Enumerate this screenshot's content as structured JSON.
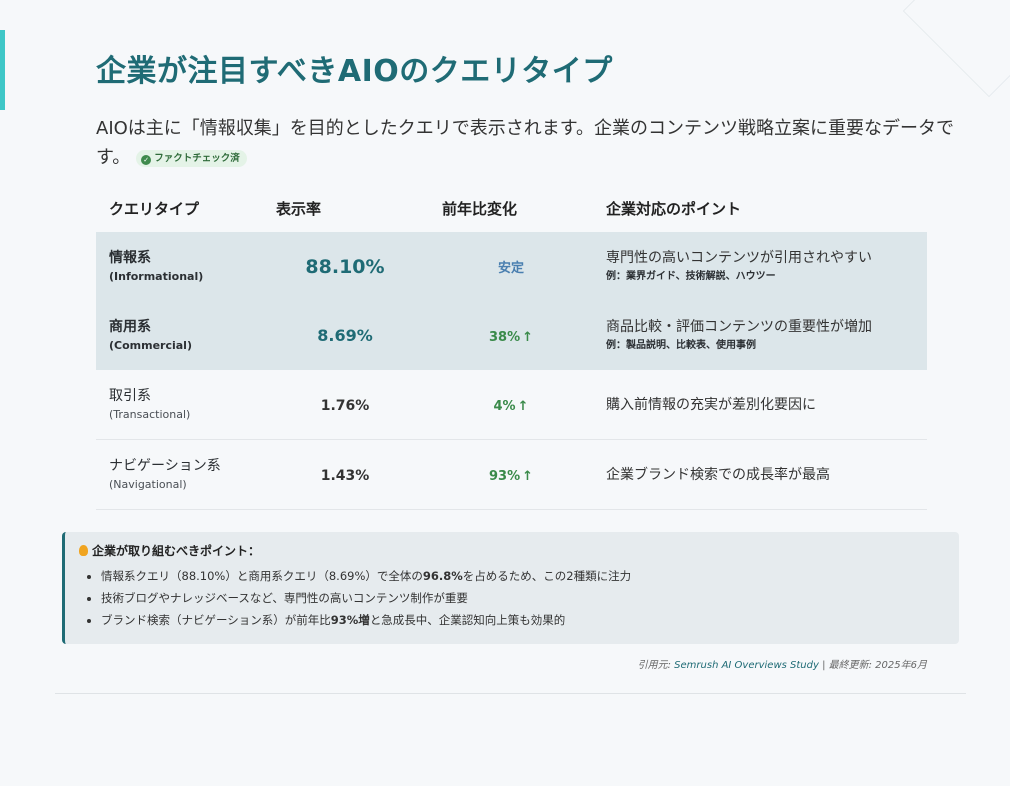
{
  "title": "企業が注目すべきAIOのクエリタイプ",
  "intro": "AIOは主に「情報収集」を目的としたクエリで表示されます。企業のコンテンツ戦略立案に重要なデータです。",
  "badge": "ファクトチェック済",
  "table": {
    "headers": [
      "クエリタイプ",
      "表示率",
      "前年比変化",
      "企業対応のポイント"
    ],
    "rows": [
      {
        "name": "情報系",
        "sub": "(Informational)",
        "rate": "88.10%",
        "change": "安定",
        "point": "専門性の高いコンテンツが引用されやすい",
        "example": "例：業界ガイド、技術解説、ハウツー"
      },
      {
        "name": "商用系",
        "sub": "(Commercial)",
        "rate": "8.69%",
        "change": "38%",
        "point": "商品比較・評価コンテンツの重要性が増加",
        "example": "例：製品説明、比較表、使用事例"
      },
      {
        "name": "取引系",
        "sub": "(Transactional)",
        "rate": "1.76%",
        "change": "4%",
        "point": "購入前情報の充実が差別化要因に",
        "example": ""
      },
      {
        "name": "ナビゲーション系",
        "sub": "(Navigational)",
        "rate": "1.43%",
        "change": "93%",
        "point": "企業ブランド検索での成長率が最高",
        "example": ""
      }
    ]
  },
  "callout": {
    "title": "企業が取り組むべきポイント：",
    "items": [
      {
        "pre": "情報系クエリ（88.10%）と商用系クエリ（8.69%）で全体の",
        "bold": "96.8%",
        "post": "を占めるため、この2種類に注力"
      },
      {
        "pre": "技術ブログやナレッジベースなど、専門性の高いコンテンツ制作が重要",
        "bold": "",
        "post": ""
      },
      {
        "pre": "ブランド検索（ナビゲーション系）が前年比",
        "bold": "93%増",
        "post": "と急成長中、企業認知向上策も効果的"
      }
    ]
  },
  "citation": {
    "prefix": "引用元: ",
    "source": "Semrush AI Overviews Study",
    "suffix": " | 最終更新: 2025年6月"
  },
  "colors": {
    "accent": "#1f6b75",
    "highlight_row": "#dce6ea",
    "up_green": "#3a8a4a",
    "stable_blue": "#4a7fb0"
  }
}
